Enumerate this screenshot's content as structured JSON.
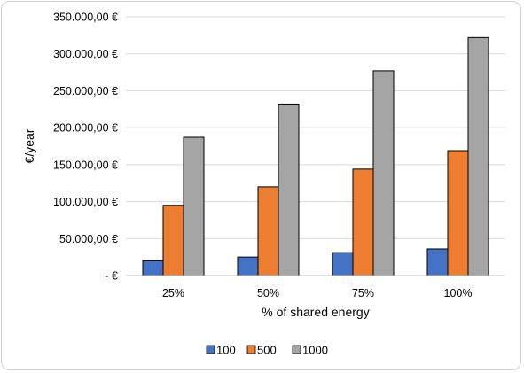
{
  "chart_data": {
    "type": "bar",
    "title": "",
    "xlabel": "% of shared energy",
    "ylabel": "€/year",
    "categories": [
      "25%",
      "50%",
      "75%",
      "100%"
    ],
    "series": [
      {
        "name": "100",
        "color": "#4472c4",
        "values": [
          20000,
          25000,
          31000,
          36000
        ]
      },
      {
        "name": "500",
        "color": "#ed7d31",
        "values": [
          95000,
          120000,
          144000,
          169000
        ]
      },
      {
        "name": "1000",
        "color": "#a5a5a5",
        "values": [
          187000,
          232000,
          277000,
          322000
        ]
      }
    ],
    "ylim": [
      0,
      350000
    ],
    "yticks": [
      0,
      50000,
      100000,
      150000,
      200000,
      250000,
      300000,
      350000
    ],
    "ytick_labels": [
      "-  €",
      "50.000,00 €",
      "100.000,00 €",
      "150.000,00 €",
      "200.000,00 €",
      "250.000,00 €",
      "300.000,00 €",
      "350.000,00 €"
    ],
    "grid": true,
    "legend_position": "bottom"
  }
}
